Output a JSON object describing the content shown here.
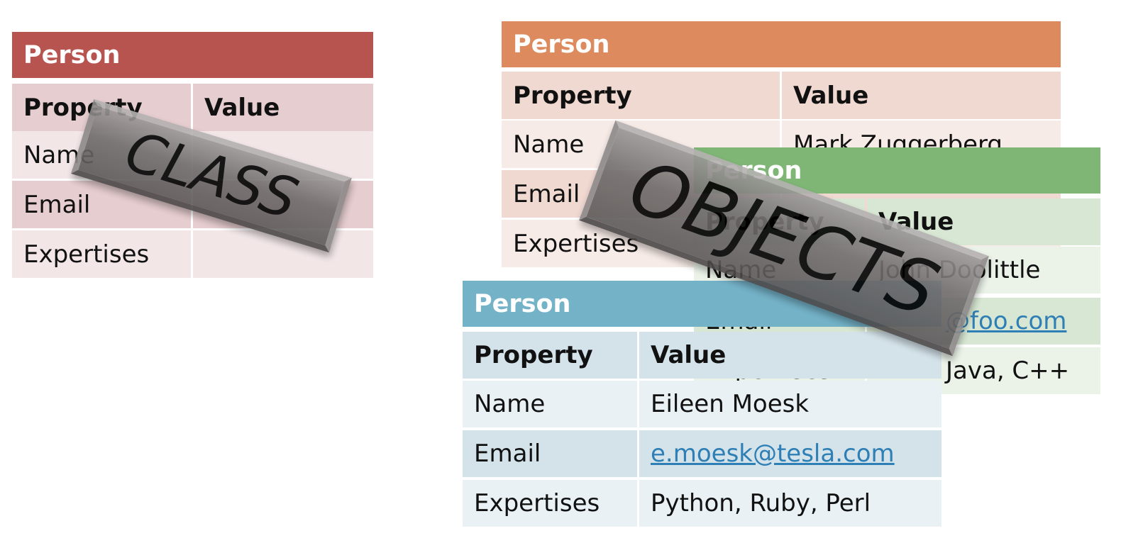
{
  "tables": [
    {
      "title": "Person",
      "header": [
        "Property",
        "Value"
      ],
      "rows": [
        [
          "Name"
        ],
        [
          "Email"
        ],
        [
          "Expertises"
        ]
      ]
    },
    {
      "title": "Person",
      "header": [
        "Property",
        "Value"
      ],
      "rows": [
        [
          "Name",
          "Mark Zuggerberg"
        ],
        [
          "Email"
        ],
        [
          "Expertises"
        ]
      ]
    },
    {
      "title": "Person",
      "header": [
        "Property",
        "Value"
      ],
      "rows": [
        [
          "Name",
          "John Doolittle"
        ],
        [
          "Email",
          "@foo.com"
        ],
        [
          "Expertises",
          "Java, C++"
        ]
      ]
    },
    {
      "title": "Person",
      "header": [
        "Property",
        "Value"
      ],
      "rows": [
        [
          "Name",
          "Eileen Moesk"
        ],
        [
          "Email",
          "e.moesk@tesla.com"
        ],
        [
          "Expertises",
          "Python, Ruby, Perl"
        ]
      ]
    }
  ],
  "banners": [
    {
      "label": "CLASS"
    },
    {
      "label": "OBJECTS"
    }
  ]
}
